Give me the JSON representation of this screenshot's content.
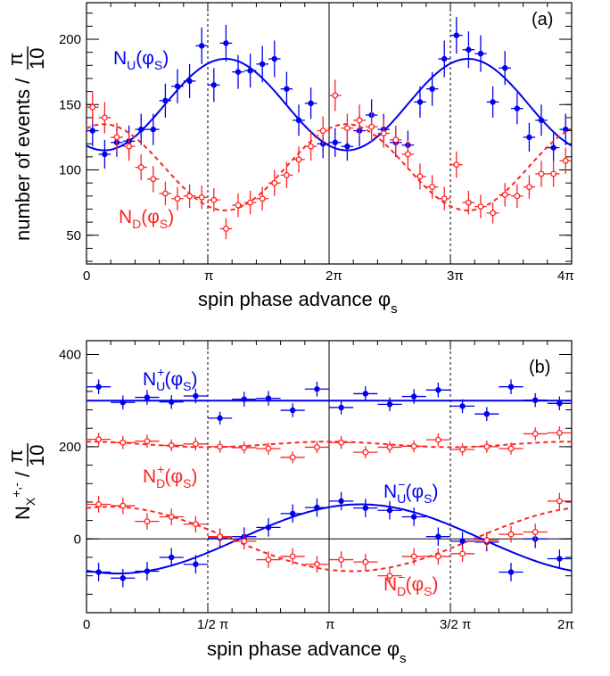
{
  "chart_data": [
    {
      "type": "scatter",
      "panel_label": "(a)",
      "xlabel": "spin phase advance φs",
      "ylabel": "number of events / π/10",
      "xlim": [
        0,
        12.566
      ],
      "ylim": [
        28,
        228
      ],
      "x_ticks": [
        {
          "v": 0,
          "label": "0"
        },
        {
          "v": 3.1416,
          "label": "π"
        },
        {
          "v": 6.2832,
          "label": "2π"
        },
        {
          "v": 9.4248,
          "label": "3π"
        },
        {
          "v": 12.566,
          "label": "4π"
        }
      ],
      "y_ticks": [
        {
          "v": 50,
          "label": "50"
        },
        {
          "v": 100,
          "label": "100"
        },
        {
          "v": 150,
          "label": "150"
        },
        {
          "v": 200,
          "label": "200"
        }
      ],
      "vlines": [
        {
          "x": 3.1416,
          "style": "dashed"
        },
        {
          "x": 6.2832,
          "style": "solid"
        },
        {
          "x": 9.4248,
          "style": "dashed"
        }
      ],
      "series": [
        {
          "name": "N_U(φ_S)",
          "color": "#0000ee",
          "marker": "filled",
          "fit": {
            "line": "solid",
            "mean": 150,
            "amp": 35,
            "period": 6.2832,
            "phase": 3.6
          },
          "xerr": 0.157,
          "x": [
            0.157,
            0.471,
            0.785,
            1.1,
            1.414,
            1.728,
            2.042,
            2.356,
            2.67,
            2.985,
            3.299,
            3.613,
            3.927,
            4.241,
            4.555,
            4.869,
            5.184,
            5.498,
            5.812,
            6.126,
            6.44,
            6.754,
            7.069,
            7.383,
            7.697,
            8.011,
            8.325,
            8.639,
            8.954,
            9.268,
            9.582,
            9.896,
            10.21,
            10.524,
            10.838,
            11.153,
            11.467,
            11.781,
            12.095,
            12.409
          ],
          "y": [
            130,
            112,
            121,
            122,
            131,
            131,
            153,
            164,
            168,
            195,
            165,
            197,
            175,
            176,
            181,
            185,
            162,
            138,
            151,
            120,
            121,
            118,
            130,
            142,
            131,
            121,
            119,
            152,
            162,
            185,
            203,
            192,
            189,
            152,
            178,
            147,
            125,
            138,
            117,
            131
          ],
          "yerr": [
            12,
            11,
            11,
            12,
            12,
            12,
            13,
            13,
            13,
            14,
            13,
            14,
            13,
            13,
            14,
            14,
            13,
            12,
            12,
            11,
            11,
            11,
            12,
            12,
            12,
            11,
            11,
            12,
            13,
            14,
            14,
            14,
            14,
            12,
            13,
            12,
            11,
            12,
            11,
            12
          ]
        },
        {
          "name": "N_D(φ_S)",
          "color": "#ff2222",
          "marker": "open",
          "fit": {
            "line": "dashed",
            "mean": 102,
            "amp": 33,
            "period": 6.2832,
            "phase": 0.45
          },
          "xerr": 0.157,
          "x": [
            0.157,
            0.471,
            0.785,
            1.1,
            1.414,
            1.728,
            2.042,
            2.356,
            2.67,
            2.985,
            3.299,
            3.613,
            3.927,
            4.241,
            4.555,
            4.869,
            5.184,
            5.498,
            5.812,
            6.126,
            6.44,
            6.754,
            7.069,
            7.383,
            7.697,
            8.011,
            8.325,
            8.639,
            8.954,
            9.268,
            9.582,
            9.896,
            10.21,
            10.524,
            10.838,
            11.153,
            11.467,
            11.781,
            12.095,
            12.409
          ],
          "y": [
            148,
            140,
            125,
            118,
            102,
            93,
            82,
            78,
            80,
            79,
            77,
            55,
            73,
            75,
            78,
            90,
            96,
            108,
            118,
            130,
            157,
            132,
            138,
            133,
            128,
            123,
            112,
            95,
            87,
            78,
            104,
            75,
            72,
            67,
            81,
            80,
            87,
            97,
            97,
            107
          ],
          "yerr": [
            12,
            12,
            11,
            11,
            10,
            10,
            9,
            9,
            9,
            9,
            9,
            8,
            9,
            9,
            9,
            10,
            10,
            10,
            11,
            11,
            12,
            11,
            12,
            12,
            11,
            11,
            11,
            10,
            9,
            9,
            10,
            9,
            9,
            8,
            9,
            9,
            9,
            10,
            10,
            10
          ]
        }
      ]
    },
    {
      "type": "scatter",
      "panel_label": "(b)",
      "xlabel": "spin phase advance φs",
      "ylabel": "N_X^{+,-} / π/10",
      "xlim": [
        0,
        6.2832
      ],
      "ylim": [
        -160,
        430
      ],
      "x_ticks": [
        {
          "v": 0,
          "label": "0"
        },
        {
          "v": 1.5708,
          "label": "1/2 π"
        },
        {
          "v": 3.1416,
          "label": "π"
        },
        {
          "v": 4.7124,
          "label": "3/2 π"
        },
        {
          "v": 6.2832,
          "label": "2π"
        }
      ],
      "y_ticks": [
        {
          "v": 0,
          "label": "0"
        },
        {
          "v": 200,
          "label": "200"
        },
        {
          "v": 400,
          "label": "400"
        }
      ],
      "vlines": [
        {
          "x": 1.5708,
          "style": "dashed"
        },
        {
          "x": 3.1416,
          "style": "solid"
        },
        {
          "x": 4.7124,
          "style": "dashed"
        }
      ],
      "hlines": [
        {
          "y": 0
        }
      ],
      "series": [
        {
          "name": "N_U^+(φ_S)",
          "color": "#0000ee",
          "marker": "filled",
          "fit": {
            "line": "solid",
            "mean": 300,
            "amp": 0,
            "period": 6.2832,
            "phase": 0
          },
          "xerr": 0.157,
          "x": [
            0.157,
            0.471,
            0.785,
            1.1,
            1.414,
            1.728,
            2.042,
            2.356,
            2.67,
            2.985,
            3.299,
            3.613,
            3.927,
            4.241,
            4.555,
            4.869,
            5.184,
            5.498,
            5.812,
            6.126
          ],
          "y": [
            330,
            296,
            307,
            297,
            310,
            262,
            303,
            305,
            279,
            325,
            285,
            315,
            292,
            309,
            323,
            288,
            271,
            330,
            301,
            294
          ],
          "yerr": [
            16,
            15,
            16,
            15,
            16,
            14,
            16,
            16,
            15,
            16,
            15,
            16,
            15,
            16,
            16,
            15,
            15,
            16,
            15,
            15
          ]
        },
        {
          "name": "N_D^+(φ_S)",
          "color": "#ff2222",
          "marker": "open",
          "fit": {
            "line": "dashed",
            "mean": 205,
            "amp": 6,
            "period": 3.1416,
            "phase": 0
          },
          "xerr": 0.157,
          "x": [
            0.157,
            0.471,
            0.785,
            1.1,
            1.414,
            1.728,
            2.042,
            2.356,
            2.67,
            2.985,
            3.299,
            3.613,
            3.927,
            4.241,
            4.555,
            4.869,
            5.184,
            5.498,
            5.812,
            6.126
          ],
          "y": [
            216,
            209,
            212,
            203,
            206,
            200,
            198,
            196,
            177,
            199,
            209,
            188,
            199,
            201,
            215,
            194,
            200,
            196,
            228,
            230
          ],
          "yerr": [
            14,
            14,
            14,
            13,
            14,
            13,
            13,
            13,
            13,
            13,
            14,
            13,
            13,
            13,
            14,
            13,
            13,
            13,
            14,
            14
          ]
        },
        {
          "name": "N_U^-(φ_S)",
          "color": "#0000ee",
          "marker": "filled",
          "fit": {
            "line": "solid",
            "mean": 0,
            "amp": 75,
            "period": 6.2832,
            "phase": 3.55
          },
          "xerr": 0.157,
          "x": [
            0.157,
            0.471,
            0.785,
            1.1,
            1.414,
            1.728,
            2.042,
            2.356,
            2.67,
            2.985,
            3.299,
            3.613,
            3.927,
            4.241,
            4.555,
            4.869,
            5.184,
            5.498,
            5.812,
            6.126
          ],
          "y": [
            -72,
            -85,
            -70,
            -40,
            -55,
            2,
            5,
            25,
            55,
            68,
            82,
            67,
            62,
            48,
            5,
            -5,
            -7,
            -72,
            0,
            -43
          ],
          "yerr": [
            20,
            20,
            20,
            20,
            20,
            20,
            20,
            20,
            20,
            20,
            20,
            20,
            20,
            20,
            20,
            20,
            20,
            20,
            20,
            20
          ]
        },
        {
          "name": "N_D^-(φ_S)",
          "color": "#ff2222",
          "marker": "open",
          "fit": {
            "line": "dashed",
            "mean": 0,
            "amp": 70,
            "period": 6.2832,
            "phase": 0.3
          },
          "xerr": 0.157,
          "x": [
            0.157,
            0.471,
            0.785,
            1.1,
            1.414,
            1.728,
            2.042,
            2.356,
            2.67,
            2.985,
            3.299,
            3.613,
            3.927,
            4.241,
            4.555,
            4.869,
            5.184,
            5.498,
            5.812,
            6.126
          ],
          "y": [
            75,
            72,
            38,
            48,
            32,
            5,
            -5,
            -45,
            -38,
            -55,
            -45,
            -50,
            -80,
            -38,
            -38,
            -32,
            -3,
            10,
            15,
            82
          ],
          "yerr": [
            18,
            18,
            18,
            18,
            18,
            18,
            18,
            18,
            18,
            18,
            18,
            18,
            18,
            18,
            18,
            18,
            18,
            18,
            18,
            18
          ]
        }
      ]
    }
  ]
}
